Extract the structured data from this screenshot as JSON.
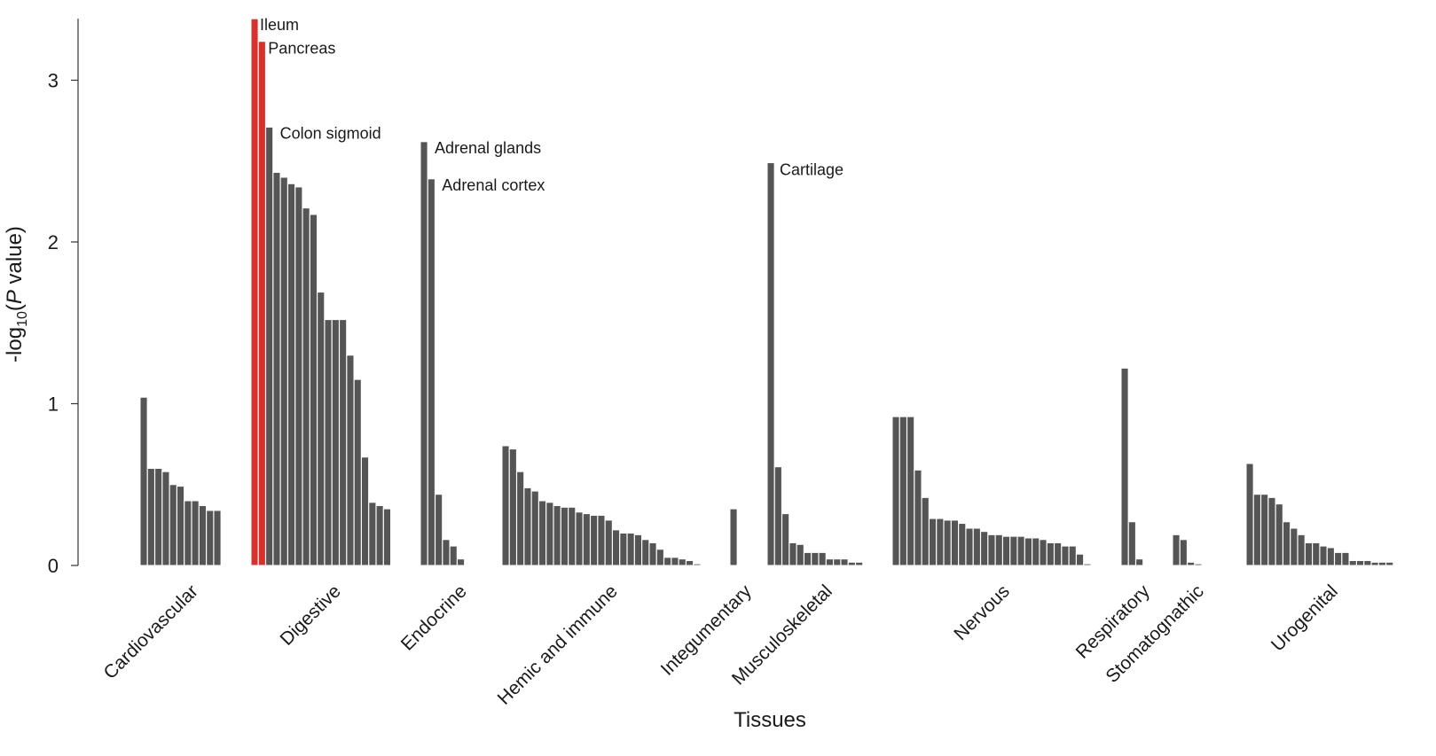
{
  "chart_data": {
    "type": "bar",
    "xlabel": "Tissues",
    "ylabel": {
      "prefix": "-log",
      "sub": "10",
      "open": "(",
      "italic": "P",
      "rest": " value)"
    },
    "ylim": [
      0,
      3.38
    ],
    "yticks": [
      "0",
      "1",
      "2",
      "3"
    ],
    "grid": false,
    "highlight_color": "#d7312c",
    "bar_color": "#555555",
    "groups": [
      {
        "name": "Cardiovascular",
        "values": [
          1.04,
          0.6,
          0.6,
          0.58,
          0.5,
          0.49,
          0.4,
          0.4,
          0.37,
          0.34,
          0.34
        ]
      },
      {
        "name": "Digestive",
        "values": [
          3.38,
          3.24,
          2.71,
          2.43,
          2.4,
          2.36,
          2.34,
          2.21,
          2.17,
          1.69,
          1.52,
          1.52,
          1.52,
          1.3,
          1.15,
          0.67,
          0.39,
          0.37,
          0.35
        ],
        "highlight": [
          0,
          1
        ]
      },
      {
        "name": "Endocrine",
        "values": [
          2.62,
          2.39,
          0.44,
          0.16,
          0.12,
          0.04
        ]
      },
      {
        "name": "Hemic and immune",
        "values": [
          0.74,
          0.72,
          0.58,
          0.48,
          0.46,
          0.4,
          0.39,
          0.37,
          0.36,
          0.36,
          0.33,
          0.32,
          0.31,
          0.31,
          0.28,
          0.22,
          0.2,
          0.2,
          0.19,
          0.16,
          0.14,
          0.1,
          0.05,
          0.05,
          0.04,
          0.03,
          0.01
        ]
      },
      {
        "name": "Integumentary",
        "values": [
          0.35
        ]
      },
      {
        "name": "Musculoskeletal",
        "values": [
          2.49,
          0.61,
          0.32,
          0.14,
          0.13,
          0.08,
          0.08,
          0.08,
          0.04,
          0.04,
          0.04,
          0.02,
          0.02
        ]
      },
      {
        "name": "Nervous",
        "values": [
          0.92,
          0.92,
          0.92,
          0.59,
          0.42,
          0.29,
          0.29,
          0.28,
          0.28,
          0.26,
          0.23,
          0.23,
          0.21,
          0.19,
          0.19,
          0.18,
          0.18,
          0.18,
          0.17,
          0.17,
          0.16,
          0.14,
          0.14,
          0.12,
          0.12,
          0.07,
          0.01
        ]
      },
      {
        "name": "Respiratory",
        "values": [
          1.22,
          0.27,
          0.04
        ]
      },
      {
        "name": "Stomatognathic",
        "values": [
          0.19,
          0.16,
          0.02,
          0.01
        ]
      },
      {
        "name": "Urogenital",
        "values": [
          0.63,
          0.44,
          0.44,
          0.42,
          0.38,
          0.27,
          0.23,
          0.19,
          0.14,
          0.14,
          0.12,
          0.11,
          0.08,
          0.08,
          0.03,
          0.03,
          0.03,
          0.02,
          0.02,
          0.02
        ]
      }
    ],
    "annotations": [
      {
        "text": "Ileum",
        "group": 1,
        "bar": 0
      },
      {
        "text": "Pancreas",
        "group": 1,
        "bar": 1
      },
      {
        "text": "Colon sigmoid",
        "group": 1,
        "bar": 2
      },
      {
        "text": "Adrenal glands",
        "group": 2,
        "bar": 0
      },
      {
        "text": "Adrenal cortex",
        "group": 2,
        "bar": 1
      },
      {
        "text": "Cartilage",
        "group": 5,
        "bar": 0
      }
    ]
  }
}
